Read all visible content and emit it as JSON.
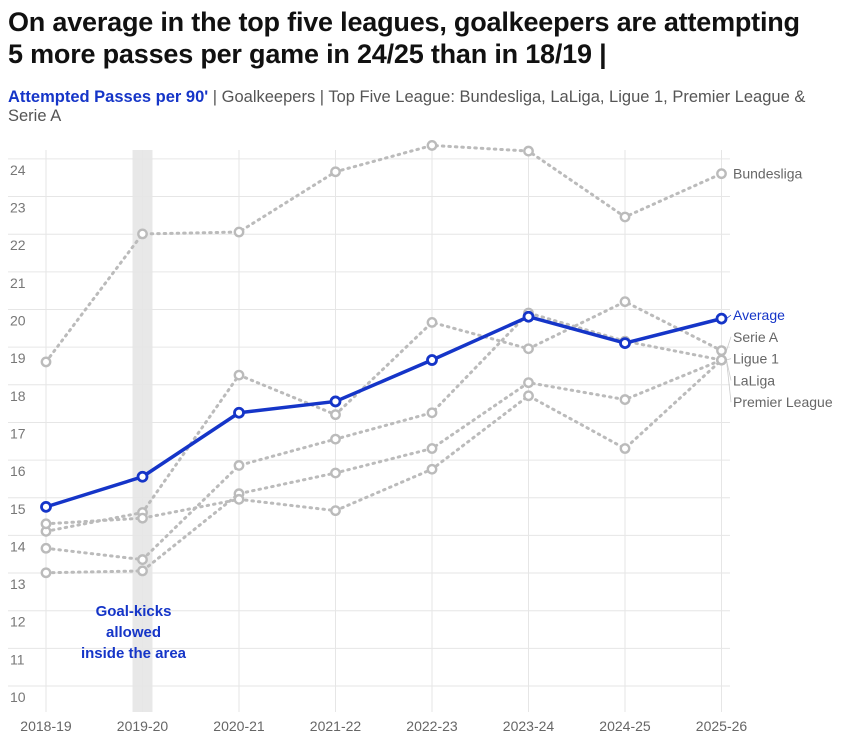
{
  "title": {
    "line1": "On average in the top five leagues, goalkeepers are attempting",
    "line2": "5 more passes per game in 24/25 than in 18/19 |"
  },
  "subtitle": {
    "metric": "Attempted Passes per 90'",
    "rest": " | Goalkeepers | Top Five League: Bundesliga, LaLiga, Ligue 1, Premier League & Serie A"
  },
  "colors": {
    "average": "#1535c8",
    "league": "#bbbbbb",
    "band": "#e8e8e8",
    "grid": "#e6e6e6"
  },
  "chart_data": {
    "type": "line",
    "categories": [
      "2018-19",
      "2019-20",
      "2020-21",
      "2021-22",
      "2022-23",
      "2023-24",
      "2024-25",
      "2025-26"
    ],
    "ylim": [
      9.5,
      24.8
    ],
    "yticks": [
      10,
      11,
      12,
      13,
      14,
      15,
      16,
      17,
      18,
      19,
      20,
      21,
      22,
      23,
      24
    ],
    "grid": true,
    "annotation": {
      "category": "2019-20",
      "text": "Goal-kicks allowed inside the area"
    },
    "series": [
      {
        "name": "Bundesliga",
        "highlight": false,
        "values": [
          18.9,
          22.3,
          22.35,
          23.95,
          24.65,
          24.5,
          22.75,
          23.9
        ]
      },
      {
        "name": "Serie A",
        "highlight": false,
        "values": [
          14.4,
          14.9,
          18.55,
          17.5,
          19.95,
          19.25,
          20.5,
          19.2
        ]
      },
      {
        "name": "Ligue 1",
        "highlight": false,
        "values": [
          13.95,
          13.65,
          16.15,
          16.85,
          17.55,
          20.2,
          19.45,
          18.95
        ]
      },
      {
        "name": "LaLiga",
        "highlight": false,
        "values": [
          13.3,
          13.35,
          15.4,
          15.95,
          16.6,
          18.35,
          17.9,
          18.95
        ]
      },
      {
        "name": "Premier League",
        "highlight": false,
        "values": [
          14.6,
          14.75,
          15.25,
          14.95,
          16.05,
          18.0,
          16.6,
          18.95
        ]
      },
      {
        "name": "Average",
        "highlight": true,
        "values": [
          15.05,
          15.85,
          17.55,
          17.85,
          18.95,
          20.1,
          19.4,
          20.05
        ]
      }
    ],
    "label_order": [
      "Average",
      "Serie A",
      "Ligue 1",
      "LaLiga",
      "Premier League"
    ]
  }
}
